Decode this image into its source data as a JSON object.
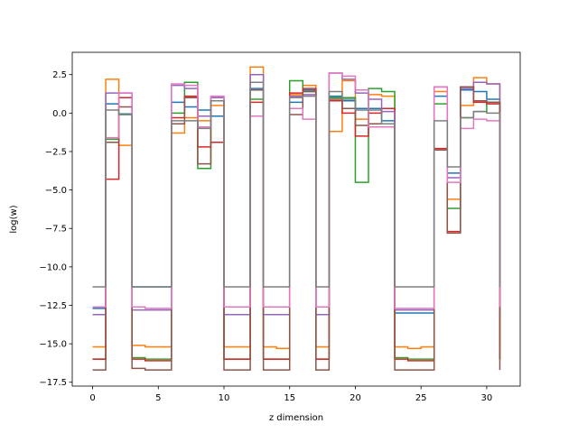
{
  "chart_data": {
    "type": "line",
    "drawstyle": "steps-post",
    "xlabel": "z dimension",
    "ylabel": "log(w)",
    "xlim": [
      -1.55,
      32.55
    ],
    "ylim": [
      -17.75,
      3.95
    ],
    "xticks": [
      0,
      5,
      10,
      15,
      20,
      25,
      30
    ],
    "yticks": [
      2.5,
      0.0,
      -2.5,
      -5.0,
      -7.5,
      -10.0,
      -12.5,
      -15.0,
      -17.5
    ],
    "ytick_labels": [
      "2.5",
      "0.0",
      "−2.5",
      "−5.0",
      "−7.5",
      "−10.0",
      "−12.5",
      "−15.0",
      "−17.5"
    ],
    "grid": false,
    "x": [
      0,
      1,
      2,
      3,
      4,
      5,
      6,
      7,
      8,
      9,
      10,
      11,
      12,
      13,
      14,
      15,
      16,
      17,
      18,
      19,
      20,
      21,
      22,
      23,
      24,
      25,
      26,
      27,
      28,
      29,
      30,
      31
    ],
    "series": [
      {
        "color": "#1f77b4",
        "values": [
          -12.7,
          0.6,
          -0.05,
          -11.3,
          -11.3,
          -11.3,
          0.7,
          0.4,
          0.2,
          -0.2,
          -13.1,
          -13.1,
          1.6,
          -13.1,
          -13.1,
          0.7,
          1.5,
          -13.1,
          1.1,
          0.8,
          0.3,
          0.3,
          -0.5,
          -13.0,
          -13.0,
          -13.0,
          1.1,
          -3.9,
          1.5,
          1.4,
          0.9,
          -13.1
        ]
      },
      {
        "color": "#ff7f0e",
        "values": [
          -15.2,
          2.2,
          -2.1,
          -15.1,
          -15.2,
          -15.2,
          -1.3,
          -0.3,
          -0.5,
          0.5,
          -15.2,
          -15.2,
          3.0,
          -15.2,
          -15.3,
          1.2,
          1.8,
          -15.2,
          -1.2,
          2.1,
          -0.4,
          1.2,
          1.1,
          -15.2,
          -15.3,
          -15.2,
          1.4,
          -5.6,
          0.5,
          2.3,
          1.9,
          -15.2
        ]
      },
      {
        "color": "#2ca02c",
        "values": [
          -16.0,
          -1.7,
          -0.1,
          -15.9,
          -16.0,
          -16.0,
          0.0,
          2.0,
          -3.6,
          0.8,
          -16.0,
          -16.0,
          0.9,
          -16.0,
          -16.0,
          2.1,
          1.4,
          -16.0,
          1.0,
          1.0,
          -4.5,
          1.6,
          1.4,
          -15.9,
          -16.0,
          -16.0,
          0.6,
          -6.2,
          -0.3,
          0.1,
          0.7,
          -16.0
        ]
      },
      {
        "color": "#d62728",
        "values": [
          -16.0,
          -4.3,
          1.0,
          -16.0,
          -16.1,
          -16.1,
          -0.3,
          1.1,
          -2.2,
          -1.9,
          -16.0,
          -16.0,
          0.7,
          -16.0,
          -16.0,
          1.3,
          1.6,
          -16.0,
          0.8,
          0.0,
          -1.5,
          0.0,
          0.3,
          -16.0,
          -16.1,
          -16.1,
          -2.3,
          -7.7,
          1.7,
          0.7,
          0.6,
          -16.0
        ]
      },
      {
        "color": "#9467bd",
        "values": [
          -13.1,
          1.3,
          1.3,
          -12.8,
          -12.8,
          -12.8,
          1.8,
          1.6,
          -0.2,
          1.0,
          -13.1,
          -13.1,
          2.5,
          -13.1,
          -13.1,
          1.1,
          1.2,
          -13.1,
          2.6,
          2.2,
          1.3,
          0.9,
          0.1,
          -12.8,
          -12.8,
          -12.8,
          1.7,
          -4.2,
          1.6,
          2.0,
          1.9,
          -13.1
        ]
      },
      {
        "color": "#8c564b",
        "values": [
          -16.7,
          -1.9,
          0.4,
          -16.6,
          -16.7,
          -16.7,
          -0.7,
          1.0,
          -3.3,
          0.8,
          -16.7,
          -16.7,
          1.5,
          -16.7,
          -16.7,
          -0.1,
          1.4,
          -16.7,
          0.9,
          0.3,
          -0.8,
          -0.7,
          -0.7,
          -16.7,
          -16.7,
          -16.7,
          -2.4,
          -7.8,
          1.7,
          0.8,
          0.7,
          -16.7
        ]
      },
      {
        "color": "#e377c2",
        "values": [
          -12.6,
          -1.6,
          1.3,
          -12.6,
          -12.7,
          -12.7,
          1.9,
          1.8,
          -0.9,
          1.1,
          -12.6,
          -12.6,
          -0.2,
          -12.6,
          -12.6,
          0.3,
          -0.4,
          -12.6,
          2.6,
          2.4,
          1.5,
          -0.9,
          -0.9,
          -12.7,
          -12.7,
          -12.7,
          1.7,
          -4.5,
          -1.0,
          -0.4,
          -0.5,
          -12.6
        ]
      },
      {
        "color": "#7f7f7f",
        "values": [
          -11.3,
          0.2,
          -0.1,
          -11.3,
          -11.3,
          -11.3,
          -0.5,
          -0.5,
          -1.0,
          0.8,
          -11.3,
          -11.3,
          2.0,
          -11.3,
          -11.3,
          1.0,
          1.1,
          -11.3,
          1.4,
          0.9,
          0.2,
          0.2,
          -0.7,
          -11.3,
          -11.3,
          -11.3,
          -0.5,
          -3.5,
          -0.3,
          0.1,
          0.0,
          -11.3
        ]
      }
    ]
  }
}
